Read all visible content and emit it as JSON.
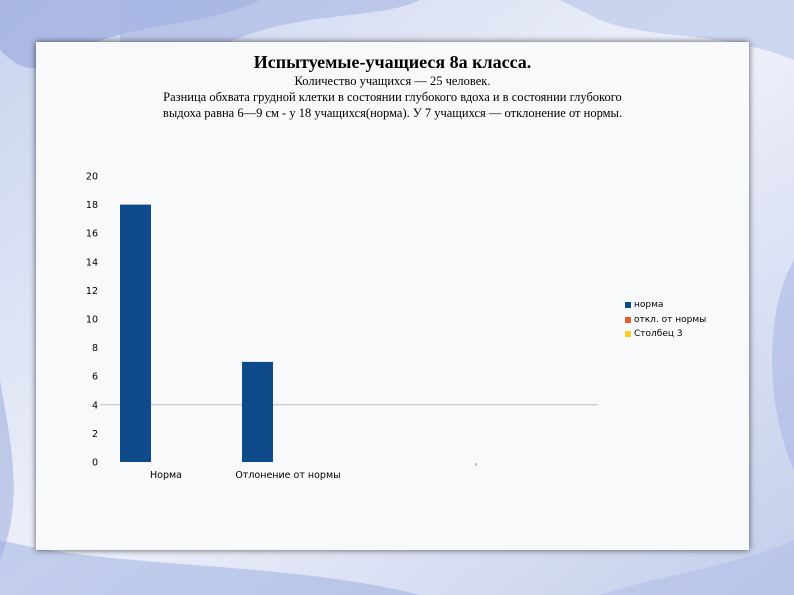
{
  "title": "Испытуемые-учащиеся 8а класса.",
  "description": {
    "line1": "Количество учащихся — 25 человек.",
    "line2": "Разница обхвата грудной клетки в состоянии глубокого вдоха и в состоянии глубокого",
    "line3": "выдоха равна 6—9 см - у 18 учащихся(норма). У 7 учащихся — отклонение от нормы."
  },
  "colors": {
    "series1": "#0f4a8a",
    "series2": "#f05a28",
    "series3": "#f5d11e"
  },
  "chart_data": {
    "type": "bar",
    "categories": [
      "Норма",
      "Отлонение от нормы",
      ""
    ],
    "series": [
      {
        "name": "норма",
        "values": [
          18,
          7,
          null
        ]
      },
      {
        "name": "откл. от нормы",
        "values": [
          null,
          null,
          null
        ]
      },
      {
        "name": "Столбец 3",
        "values": [
          null,
          null,
          null
        ]
      }
    ],
    "ylim": [
      0,
      20
    ],
    "yticks": [
      0,
      2,
      4,
      6,
      8,
      10,
      12,
      14,
      16,
      18,
      20
    ],
    "grid": false,
    "reference_line": 4,
    "legend_position": "right"
  }
}
